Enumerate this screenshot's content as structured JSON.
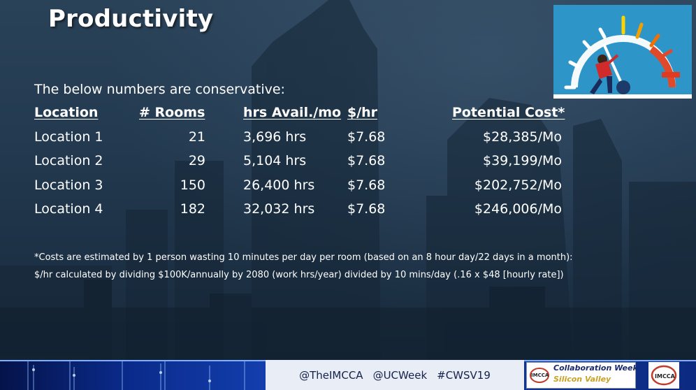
{
  "slide": {
    "title": "Productivity",
    "intro": "The below numbers are conservative:",
    "table": {
      "headers": {
        "location": "Location",
        "rooms": "# Rooms",
        "hours": "hrs Avail./mo",
        "rate": "$/hr",
        "cost": "Potential Cost*"
      },
      "rows": [
        {
          "location": "Location 1",
          "rooms": "21",
          "hours": "3,696 hrs",
          "rate": "$7.68",
          "cost": "$28,385/Mo"
        },
        {
          "location": "Location 2",
          "rooms": "29",
          "hours": "5,104 hrs",
          "rate": "$7.68",
          "cost": "$39,199/Mo"
        },
        {
          "location": "Location 3",
          "rooms": "150",
          "hours": "26,400 hrs",
          "rate": "$7.68",
          "cost": "$202,752/Mo"
        },
        {
          "location": "Location 4",
          "rooms": "182",
          "hours": "32,032 hrs",
          "rate": "$7.68",
          "cost": "$246,006/Mo"
        }
      ]
    },
    "footnotes": [
      "*Costs are estimated by 1 person wasting 10 minutes per day per room (based on an 8 hour day/22 days in a month):",
      "$/hr calculated by dividing $100K/annually by 2080 (work hrs/year) divided by 10 mins/day (.16 x $48 [hourly rate])"
    ]
  },
  "footer": {
    "handles": [
      "@TheIMCCA",
      "@UCWeek",
      "#CWSV19"
    ],
    "event_logo_line1": "Collaboration Week",
    "event_logo_line2": "Silicon Valley",
    "event_logo_mark": "IMCCA",
    "org_logo": "IMCCA"
  },
  "illustration": {
    "icon": "speedometer-push-icon"
  },
  "colors": {
    "background": "#1f3348",
    "text": "#ffffff",
    "footer_blue": "#1440b0",
    "gauge_bg": "#2e95c9"
  }
}
